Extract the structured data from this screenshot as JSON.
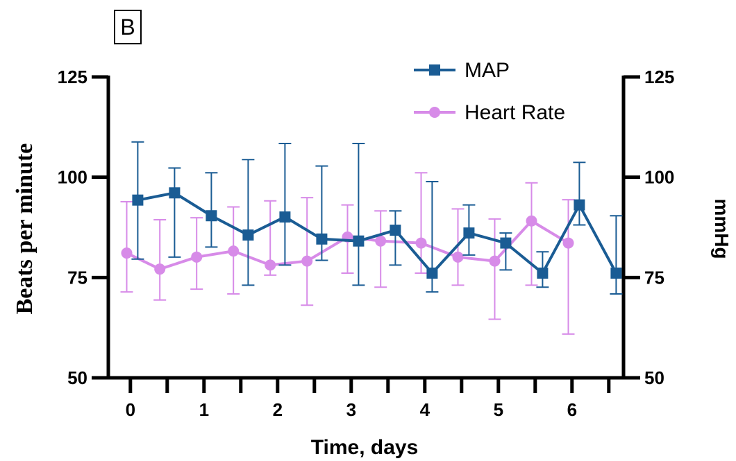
{
  "panel_label": "B",
  "chart_data": {
    "type": "line",
    "xlabel": "Time, days",
    "ylabel_left": "Beats per minute",
    "ylabel_right": "mmHg",
    "xlim": [
      -0.3,
      6.7
    ],
    "ylim": [
      50,
      125
    ],
    "x_ticks": [
      0,
      1,
      2,
      3,
      4,
      5,
      6
    ],
    "y_ticks_left": [
      50,
      75,
      100,
      125
    ],
    "y_ticks_right": [
      50,
      75,
      100,
      125
    ],
    "grid": false,
    "legend_position": "top-right",
    "series": [
      {
        "name": "MAP",
        "color": "#1a5c94",
        "marker": "square",
        "x": [
          0.1,
          0.6,
          1.1,
          1.6,
          2.1,
          2.6,
          3.1,
          3.6,
          4.1,
          4.6,
          5.1,
          5.6,
          6.1,
          6.6
        ],
        "y": [
          94.3,
          96.1,
          90.4,
          85.6,
          90.1,
          84.6,
          84.1,
          86.8,
          76.1,
          86.1,
          83.6,
          76.1,
          93.1,
          76.1
        ],
        "err_upper": [
          108.8,
          102.3,
          101.1,
          104.4,
          108.4,
          102.8,
          108.4,
          91.6,
          98.9,
          93.1,
          86.1,
          81.4,
          103.7,
          90.4
        ],
        "err_lower": [
          79.6,
          80.1,
          82.6,
          73.1,
          78.1,
          79.3,
          73.1,
          78.1,
          71.4,
          80.6,
          76.9,
          72.6,
          88.1,
          70.9
        ]
      },
      {
        "name": "Heart Rate",
        "color": "#d78be8",
        "marker": "circle",
        "x": [
          -0.05,
          0.4,
          0.9,
          1.4,
          1.9,
          2.4,
          2.95,
          3.4,
          3.95,
          4.45,
          4.95,
          5.45,
          5.95
        ],
        "y": [
          81.1,
          77.1,
          80.1,
          81.6,
          78.1,
          79.1,
          85.1,
          84.1,
          83.6,
          80.1,
          79.1,
          89.1,
          83.6
        ],
        "err_upper": [
          93.9,
          89.4,
          89.9,
          92.6,
          94.1,
          94.9,
          93.1,
          91.6,
          101.1,
          92.1,
          89.6,
          98.6,
          94.4
        ],
        "err_lower": [
          71.4,
          69.4,
          72.1,
          70.9,
          75.6,
          68.1,
          76.1,
          72.6,
          76.1,
          73.1,
          64.6,
          73.1,
          60.9
        ]
      }
    ]
  }
}
